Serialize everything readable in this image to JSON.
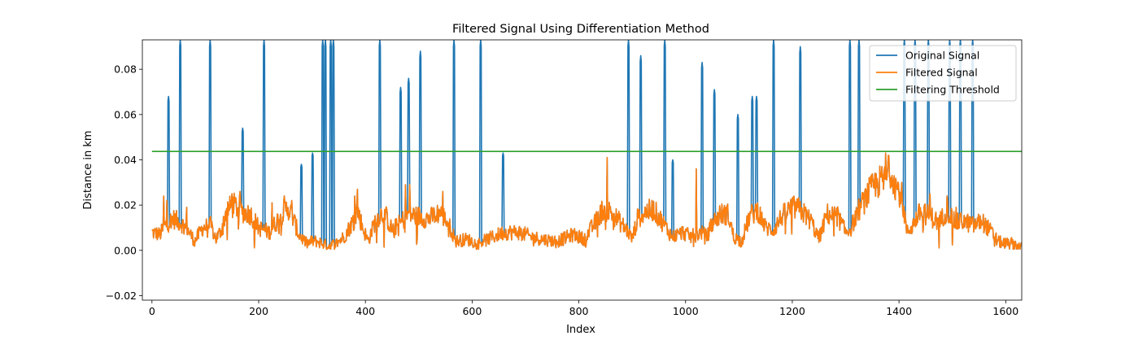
{
  "chart_data": {
    "type": "line",
    "title": "Filtered Signal Using Differentiation Method",
    "xlabel": "Index",
    "ylabel": "Distance in km",
    "xlim": [
      -18,
      1630
    ],
    "ylim": [
      -0.022,
      0.093
    ],
    "xticks": [
      0,
      200,
      400,
      600,
      800,
      1000,
      1200,
      1400,
      1600
    ],
    "yticks": [
      -0.02,
      0.0,
      0.02,
      0.04,
      0.06,
      0.08
    ],
    "ytick_labels": [
      "−0.02",
      "0.00",
      "0.02",
      "0.04",
      "0.06",
      "0.08"
    ],
    "grid": false,
    "legend_position": "top-right",
    "threshold": 0.0437,
    "base_profile": [
      [
        0,
        0.008
      ],
      [
        15,
        0.007
      ],
      [
        25,
        0.011
      ],
      [
        40,
        0.014
      ],
      [
        55,
        0.012
      ],
      [
        70,
        0.008
      ],
      [
        80,
        0.004
      ],
      [
        95,
        0.01
      ],
      [
        110,
        0.011
      ],
      [
        120,
        0.005
      ],
      [
        130,
        0.009
      ],
      [
        140,
        0.018
      ],
      [
        155,
        0.02
      ],
      [
        170,
        0.017
      ],
      [
        185,
        0.016
      ],
      [
        200,
        0.01
      ],
      [
        220,
        0.008
      ],
      [
        240,
        0.015
      ],
      [
        255,
        0.019
      ],
      [
        265,
        0.014
      ],
      [
        275,
        0.007
      ],
      [
        290,
        0.003
      ],
      [
        300,
        0.004
      ],
      [
        310,
        0.004
      ],
      [
        330,
        0.002
      ],
      [
        345,
        0.003
      ],
      [
        360,
        0.006
      ],
      [
        375,
        0.012
      ],
      [
        385,
        0.018
      ],
      [
        395,
        0.01
      ],
      [
        405,
        0.004
      ],
      [
        420,
        0.014
      ],
      [
        435,
        0.017
      ],
      [
        450,
        0.009
      ],
      [
        465,
        0.012
      ],
      [
        480,
        0.016
      ],
      [
        500,
        0.015
      ],
      [
        520,
        0.014
      ],
      [
        540,
        0.017
      ],
      [
        555,
        0.012
      ],
      [
        570,
        0.004
      ],
      [
        590,
        0.005
      ],
      [
        610,
        0.003
      ],
      [
        630,
        0.005
      ],
      [
        660,
        0.008
      ],
      [
        690,
        0.008
      ],
      [
        710,
        0.006
      ],
      [
        730,
        0.005
      ],
      [
        760,
        0.004
      ],
      [
        790,
        0.007
      ],
      [
        810,
        0.005
      ],
      [
        830,
        0.012
      ],
      [
        845,
        0.018
      ],
      [
        860,
        0.017
      ],
      [
        875,
        0.013
      ],
      [
        890,
        0.009
      ],
      [
        900,
        0.005
      ],
      [
        910,
        0.014
      ],
      [
        925,
        0.017
      ],
      [
        940,
        0.018
      ],
      [
        955,
        0.013
      ],
      [
        975,
        0.006
      ],
      [
        995,
        0.008
      ],
      [
        1010,
        0.006
      ],
      [
        1030,
        0.008
      ],
      [
        1040,
        0.006
      ],
      [
        1050,
        0.012
      ],
      [
        1065,
        0.016
      ],
      [
        1080,
        0.016
      ],
      [
        1090,
        0.006
      ],
      [
        1105,
        0.004
      ],
      [
        1120,
        0.015
      ],
      [
        1135,
        0.018
      ],
      [
        1150,
        0.01
      ],
      [
        1165,
        0.009
      ],
      [
        1180,
        0.015
      ],
      [
        1200,
        0.019
      ],
      [
        1215,
        0.018
      ],
      [
        1235,
        0.013
      ],
      [
        1250,
        0.005
      ],
      [
        1265,
        0.016
      ],
      [
        1285,
        0.015
      ],
      [
        1300,
        0.008
      ],
      [
        1310,
        0.01
      ],
      [
        1325,
        0.018
      ],
      [
        1345,
        0.026
      ],
      [
        1360,
        0.03
      ],
      [
        1375,
        0.031
      ],
      [
        1385,
        0.036
      ],
      [
        1395,
        0.028
      ],
      [
        1405,
        0.024
      ],
      [
        1415,
        0.008
      ],
      [
        1425,
        0.011
      ],
      [
        1440,
        0.017
      ],
      [
        1460,
        0.015
      ],
      [
        1475,
        0.012
      ],
      [
        1490,
        0.018
      ],
      [
        1505,
        0.012
      ],
      [
        1520,
        0.013
      ],
      [
        1540,
        0.011
      ],
      [
        1555,
        0.013
      ],
      [
        1570,
        0.009
      ],
      [
        1585,
        0.004
      ],
      [
        1600,
        0.003
      ],
      [
        1615,
        0.003
      ],
      [
        1630,
        0.001
      ]
    ],
    "original_spikes": [
      [
        31,
        0.068
      ],
      [
        53,
        0.093
      ],
      [
        109,
        0.093
      ],
      [
        170,
        0.054
      ],
      [
        210,
        0.093
      ],
      [
        280,
        0.038
      ],
      [
        301,
        0.043
      ],
      [
        320,
        0.093
      ],
      [
        325,
        0.093
      ],
      [
        335,
        0.093
      ],
      [
        340,
        0.093
      ],
      [
        427,
        0.093
      ],
      [
        466,
        0.072
      ],
      [
        481,
        0.076
      ],
      [
        503,
        0.088
      ],
      [
        566,
        0.093
      ],
      [
        616,
        0.093
      ],
      [
        658,
        0.043
      ],
      [
        893,
        0.093
      ],
      [
        916,
        0.086
      ],
      [
        961,
        0.093
      ],
      [
        976,
        0.04
      ],
      [
        1031,
        0.083
      ],
      [
        1054,
        0.071
      ],
      [
        1098,
        0.06
      ],
      [
        1125,
        0.068
      ],
      [
        1133,
        0.068
      ],
      [
        1165,
        0.093
      ],
      [
        1215,
        0.09
      ],
      [
        1308,
        0.093
      ],
      [
        1325,
        0.093
      ],
      [
        1410,
        0.093
      ],
      [
        1430,
        0.093
      ],
      [
        1455,
        0.093
      ],
      [
        1495,
        0.093
      ],
      [
        1515,
        0.093
      ],
      [
        1538,
        0.093
      ]
    ],
    "filtered_spikes": [
      [
        22,
        0.024
      ],
      [
        28,
        0.022
      ],
      [
        65,
        0.019
      ],
      [
        150,
        0.025
      ],
      [
        165,
        0.026
      ],
      [
        225,
        0.021
      ],
      [
        248,
        0.024
      ],
      [
        262,
        0.022
      ],
      [
        380,
        0.024
      ],
      [
        385,
        0.027
      ],
      [
        475,
        0.029
      ],
      [
        483,
        0.029
      ],
      [
        545,
        0.026
      ],
      [
        853,
        0.041
      ],
      [
        1020,
        0.036
      ],
      [
        1375,
        0.043
      ],
      [
        1380,
        0.042
      ],
      [
        1458,
        0.025
      ],
      [
        1490,
        0.024
      ],
      [
        1507,
        0.019
      ]
    ],
    "series": [
      {
        "name": "Original Signal",
        "color": "#1f77b4"
      },
      {
        "name": "Filtered Signal",
        "color": "#ff7f0e"
      },
      {
        "name": "Filtering Threshold",
        "color": "#2ca02c"
      }
    ]
  }
}
